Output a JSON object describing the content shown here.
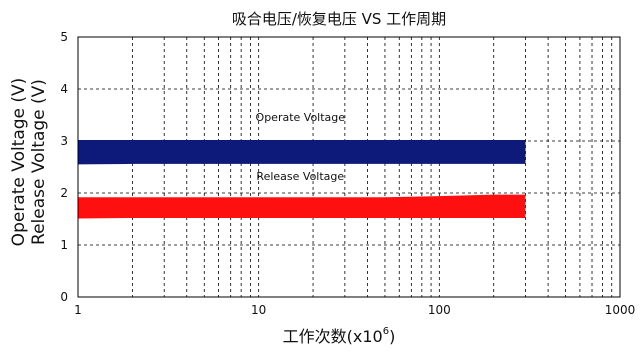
{
  "chart_data": {
    "type": "area",
    "title": "吸合电压/恢复电压 VS 工作周期",
    "xlabel_main": "工作次数(x10",
    "xlabel_exp": "6",
    "xlabel_close": ")",
    "ylabel_lines": [
      "Operate Voltage (V)",
      "Release Voltage (V)"
    ],
    "x_scale": "log",
    "xlim": [
      1,
      1000
    ],
    "x_ticks": [
      "1",
      "10",
      "100",
      "1000"
    ],
    "ylim": [
      0,
      5
    ],
    "y_ticks": [
      "0",
      "1",
      "2",
      "3",
      "4",
      "5"
    ],
    "grid": "dashed",
    "annotations": [
      "Operate Voltage",
      "Release Voltage"
    ],
    "series": [
      {
        "label": "Operate Voltage",
        "color": "#0d1a7a",
        "x": [
          1,
          2,
          5,
          10,
          50,
          100,
          200,
          300
        ],
        "upper": [
          3.02,
          3.02,
          3.02,
          3.02,
          3.02,
          3.02,
          3.02,
          3.02
        ],
        "lower": [
          2.55,
          2.56,
          2.56,
          2.56,
          2.56,
          2.56,
          2.56,
          2.56
        ]
      },
      {
        "label": "Release Voltage",
        "color": "#ff1010",
        "x": [
          1,
          2,
          5,
          10,
          50,
          100,
          200,
          300
        ],
        "upper": [
          1.92,
          1.92,
          1.92,
          1.92,
          1.92,
          1.94,
          1.97,
          1.97
        ],
        "lower": [
          1.51,
          1.52,
          1.52,
          1.52,
          1.52,
          1.52,
          1.52,
          1.52
        ]
      }
    ]
  }
}
